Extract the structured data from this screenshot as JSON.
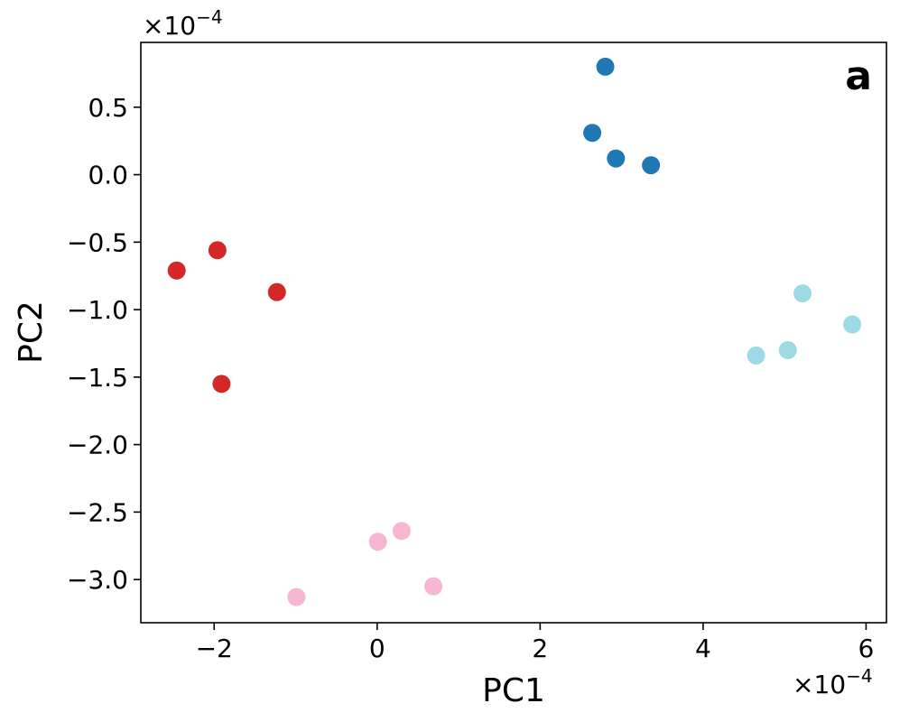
{
  "chart_data": {
    "type": "scatter",
    "panel_label": "a",
    "xlabel": "PC1",
    "ylabel": "PC2",
    "x_multiplier": "×10",
    "x_exponent": "−4",
    "y_multiplier": "×10",
    "y_exponent": "−4",
    "xlim": [
      -2.9,
      6.25
    ],
    "ylim": [
      -3.32,
      0.98
    ],
    "xticks": [
      -2,
      0,
      2,
      4,
      6
    ],
    "xtick_labels": [
      "−2",
      "0",
      "2",
      "4",
      "6"
    ],
    "yticks": [
      0.5,
      0.0,
      -0.5,
      -1.0,
      -1.5,
      -2.0,
      -2.5,
      -3.0
    ],
    "ytick_labels": [
      "0.5",
      "0.0",
      "−0.5",
      "−1.0",
      "−1.5",
      "−2.0",
      "−2.5",
      "−3.0"
    ],
    "grid": false,
    "series": [
      {
        "color": "#1f77b4",
        "x": [
          2.8,
          2.64,
          2.93,
          3.36
        ],
        "y": [
          0.8,
          0.31,
          0.12,
          0.07
        ]
      },
      {
        "color": "#d62728",
        "x": [
          -2.46,
          -1.96,
          -1.23,
          -1.91
        ],
        "y": [
          -0.71,
          -0.56,
          -0.87,
          -1.55
        ]
      },
      {
        "color": "#9edae5",
        "x": [
          5.22,
          5.83,
          4.65,
          5.04
        ],
        "y": [
          -0.88,
          -1.11,
          -1.34,
          -1.3
        ]
      },
      {
        "color": "#f7b6d2",
        "x": [
          0.01,
          0.3,
          0.69,
          -0.99
        ],
        "y": [
          -2.72,
          -2.64,
          -3.05,
          -3.13
        ]
      }
    ]
  }
}
